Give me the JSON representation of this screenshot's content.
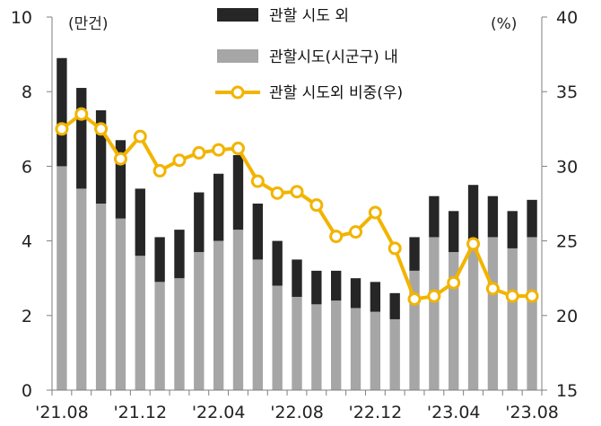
{
  "chart_data": {
    "type": "bar",
    "stacked": true,
    "left_unit": "(만건)",
    "right_unit": "(%)",
    "left_ylim": [
      0,
      10
    ],
    "left_yticks": [
      0,
      2,
      4,
      6,
      8,
      10
    ],
    "right_ylim": [
      15,
      40
    ],
    "right_yticks": [
      15,
      20,
      25,
      30,
      35,
      40
    ],
    "x_tick_labels": [
      "'21.08",
      "'21.12",
      "'22.04",
      "'22.08",
      "'22.12",
      "'23.04",
      "'23.08"
    ],
    "categories": [
      "21.08",
      "21.09",
      "21.10",
      "21.11",
      "21.12",
      "22.01",
      "22.02",
      "22.03",
      "22.04",
      "22.05",
      "22.06",
      "22.07",
      "22.08",
      "22.09",
      "22.10",
      "22.11",
      "22.12",
      "23.01",
      "23.02",
      "23.03",
      "23.04",
      "23.05",
      "23.06",
      "23.07",
      "23.08"
    ],
    "series": [
      {
        "name": "관할시도(시군구) 내",
        "type": "bar",
        "axis": "left",
        "color": "#a6a6a6",
        "values": [
          6.0,
          5.4,
          5.0,
          4.6,
          3.6,
          2.9,
          3.0,
          3.7,
          4.0,
          4.3,
          3.5,
          2.8,
          2.5,
          2.3,
          2.4,
          2.2,
          2.1,
          1.9,
          3.2,
          4.1,
          3.7,
          4.0,
          4.1,
          3.8,
          4.1
        ]
      },
      {
        "name": "관할 시도 외",
        "type": "bar",
        "axis": "left",
        "color": "#262626",
        "values": [
          2.9,
          2.7,
          2.5,
          2.1,
          1.8,
          1.2,
          1.3,
          1.6,
          1.8,
          2.0,
          1.5,
          1.2,
          1.0,
          0.9,
          0.8,
          0.8,
          0.8,
          0.7,
          0.9,
          1.1,
          1.1,
          1.5,
          1.1,
          1.0,
          1.0
        ]
      },
      {
        "name": "관할 시도외 비중(우)",
        "type": "line",
        "axis": "right",
        "color": "#f2b400",
        "values": [
          32.5,
          33.5,
          32.5,
          30.5,
          32.0,
          29.7,
          30.4,
          30.9,
          31.1,
          31.2,
          29.0,
          28.2,
          28.3,
          27.4,
          25.3,
          25.6,
          26.9,
          24.5,
          21.1,
          21.3,
          22.2,
          24.8,
          21.8,
          21.3,
          21.3
        ]
      }
    ],
    "legend_position": "top-center"
  }
}
